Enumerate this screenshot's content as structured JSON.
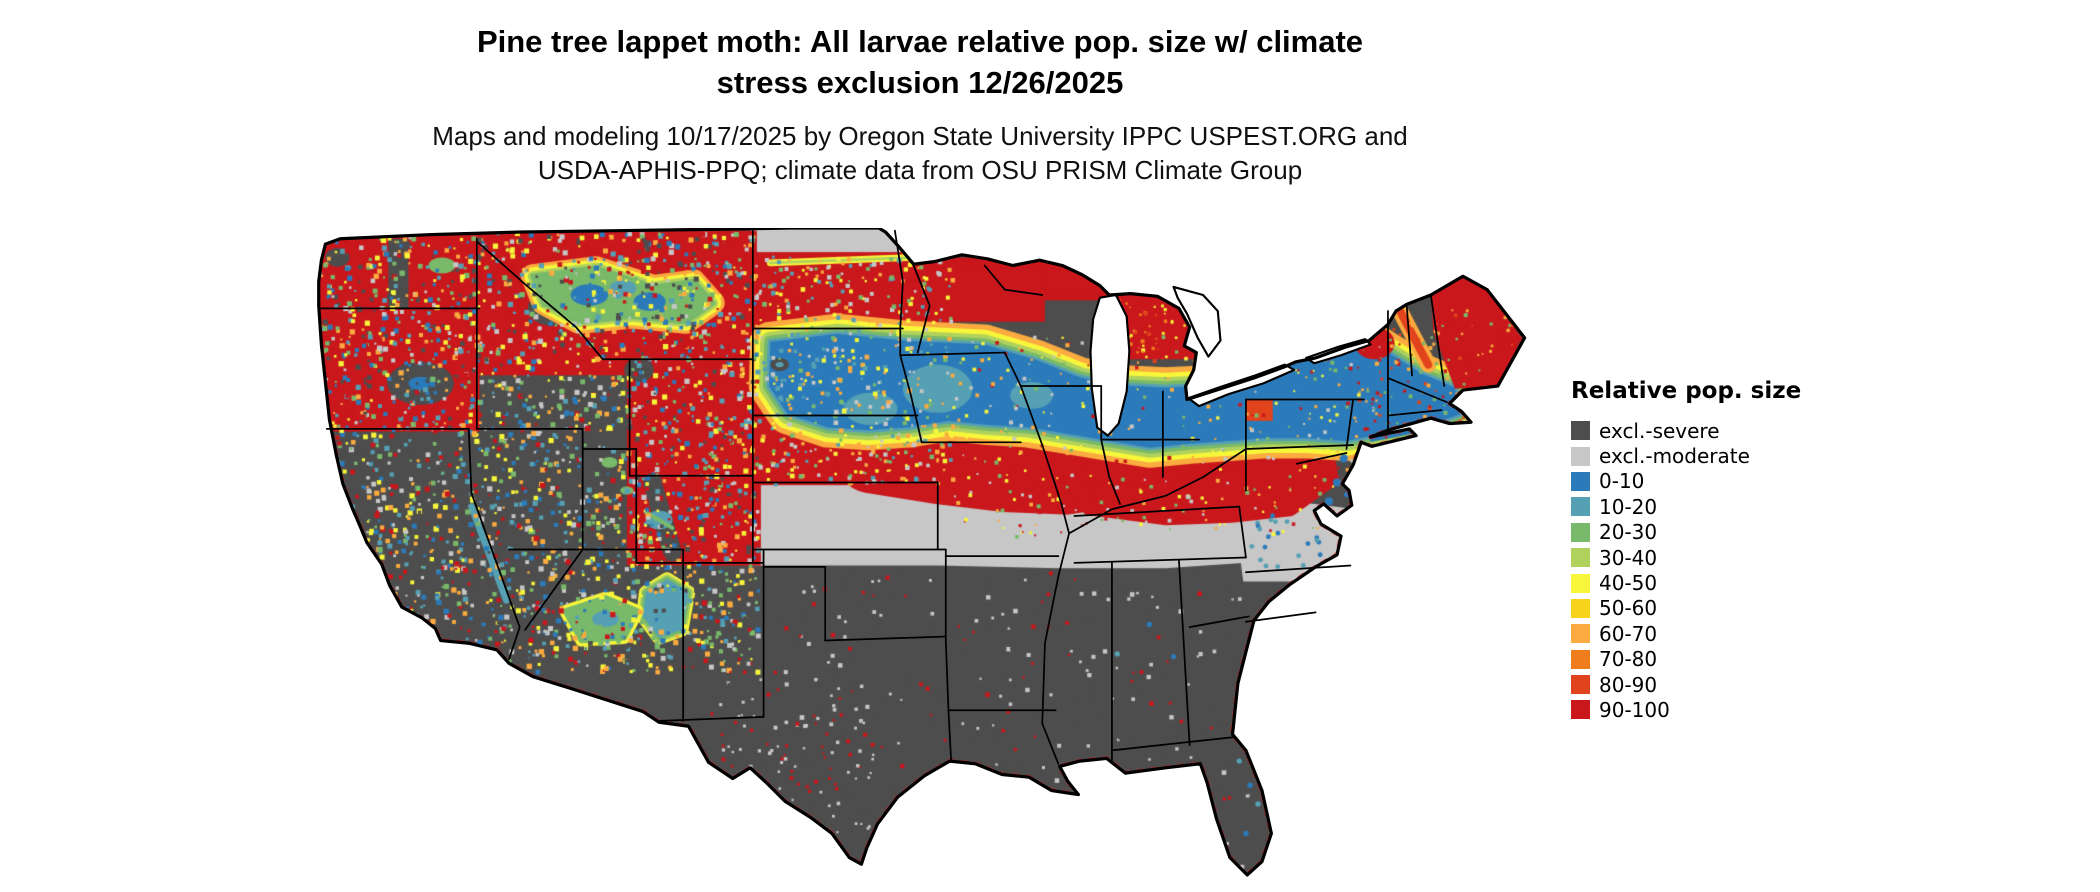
{
  "header": {
    "title_line1": "Pine tree lappet moth: All larvae relative pop. size w/ climate",
    "title_line2": "stress exclusion 12/26/2025",
    "subtitle_line1": "Maps and modeling 10/17/2025 by Oregon State University IPPC USPEST.ORG and",
    "subtitle_line2": "USDA-APHIS-PPQ; climate data from OSU PRISM Climate Group"
  },
  "map": {
    "region": "Continental United States"
  },
  "legend": {
    "title": "Relative pop. size",
    "items": [
      {
        "label": "excl.-severe",
        "color": "#4d4d4d"
      },
      {
        "label": "excl.-moderate",
        "color": "#c7c7c7"
      },
      {
        "label": "0-10",
        "color": "#2b7bba"
      },
      {
        "label": "10-20",
        "color": "#56a0b4"
      },
      {
        "label": "20-30",
        "color": "#79b96a"
      },
      {
        "label": "30-40",
        "color": "#b0d25c"
      },
      {
        "label": "40-50",
        "color": "#f7f63a"
      },
      {
        "label": "50-60",
        "color": "#f8d31c"
      },
      {
        "label": "60-70",
        "color": "#fbab3f"
      },
      {
        "label": "70-80",
        "color": "#f07d1c"
      },
      {
        "label": "80-90",
        "color": "#e1431c"
      },
      {
        "label": "90-100",
        "color": "#c9171c"
      }
    ]
  }
}
